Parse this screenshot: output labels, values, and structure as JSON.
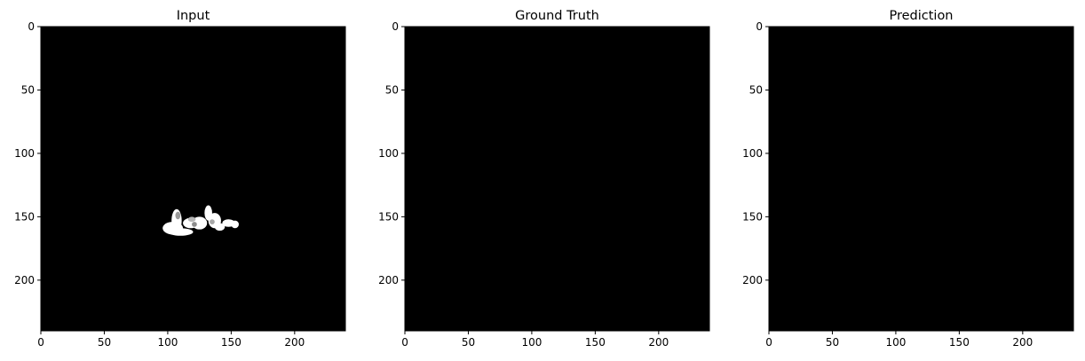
{
  "chart_data": [
    {
      "type": "heatmap",
      "title": "Input",
      "xlabel": "",
      "ylabel": "",
      "image_size": [
        240,
        240
      ],
      "xlim": [
        0,
        240
      ],
      "ylim": [
        240,
        0
      ],
      "xticks": [
        0,
        50,
        100,
        150,
        200
      ],
      "yticks": [
        0,
        50,
        100,
        150,
        200
      ],
      "colormap": "gray",
      "background_color": "#000000",
      "foreground_color": "#ffffff",
      "grid": false,
      "blobs": [
        {
          "cx": 107,
          "cy": 153,
          "rx": 4,
          "ry": 9
        },
        {
          "cx": 104,
          "cy": 159,
          "rx": 8,
          "ry": 5
        },
        {
          "cx": 110,
          "cy": 162,
          "rx": 10,
          "ry": 3
        },
        {
          "cx": 118,
          "cy": 155,
          "rx": 6,
          "ry": 4
        },
        {
          "cx": 125,
          "cy": 155,
          "rx": 6,
          "ry": 5
        },
        {
          "cx": 132,
          "cy": 147,
          "rx": 3,
          "ry": 6
        },
        {
          "cx": 137,
          "cy": 153,
          "rx": 5,
          "ry": 6
        },
        {
          "cx": 141,
          "cy": 158,
          "rx": 4,
          "ry": 3
        },
        {
          "cx": 148,
          "cy": 155,
          "rx": 5,
          "ry": 3
        },
        {
          "cx": 153,
          "cy": 156,
          "rx": 3,
          "ry": 3
        }
      ],
      "gray_spots": [
        {
          "cx": 108,
          "cy": 149,
          "rx": 2,
          "ry": 3,
          "color": "#9a9a9a"
        },
        {
          "cx": 119,
          "cy": 152,
          "rx": 3,
          "ry": 2,
          "color": "#b5b5b5"
        },
        {
          "cx": 121,
          "cy": 156,
          "rx": 2,
          "ry": 2,
          "color": "#8c8c8c"
        },
        {
          "cx": 135,
          "cy": 154,
          "rx": 2,
          "ry": 2,
          "color": "#a8a8a8"
        }
      ]
    },
    {
      "type": "heatmap",
      "title": "Ground Truth",
      "xlabel": "",
      "ylabel": "",
      "image_size": [
        240,
        240
      ],
      "xlim": [
        0,
        240
      ],
      "ylim": [
        240,
        0
      ],
      "xticks": [
        0,
        50,
        100,
        150,
        200
      ],
      "yticks": [
        0,
        50,
        100,
        150,
        200
      ],
      "colormap": "gray",
      "background_color": "#000000",
      "foreground_color": "#ffffff",
      "grid": false,
      "blobs": [],
      "gray_spots": []
    },
    {
      "type": "heatmap",
      "title": "Prediction",
      "xlabel": "",
      "ylabel": "",
      "image_size": [
        240,
        240
      ],
      "xlim": [
        0,
        240
      ],
      "ylim": [
        240,
        0
      ],
      "xticks": [
        0,
        50,
        100,
        150,
        200
      ],
      "yticks": [
        0,
        50,
        100,
        150,
        200
      ],
      "colormap": "gray",
      "background_color": "#000000",
      "foreground_color": "#ffffff",
      "grid": false,
      "blobs": [],
      "gray_spots": []
    }
  ]
}
